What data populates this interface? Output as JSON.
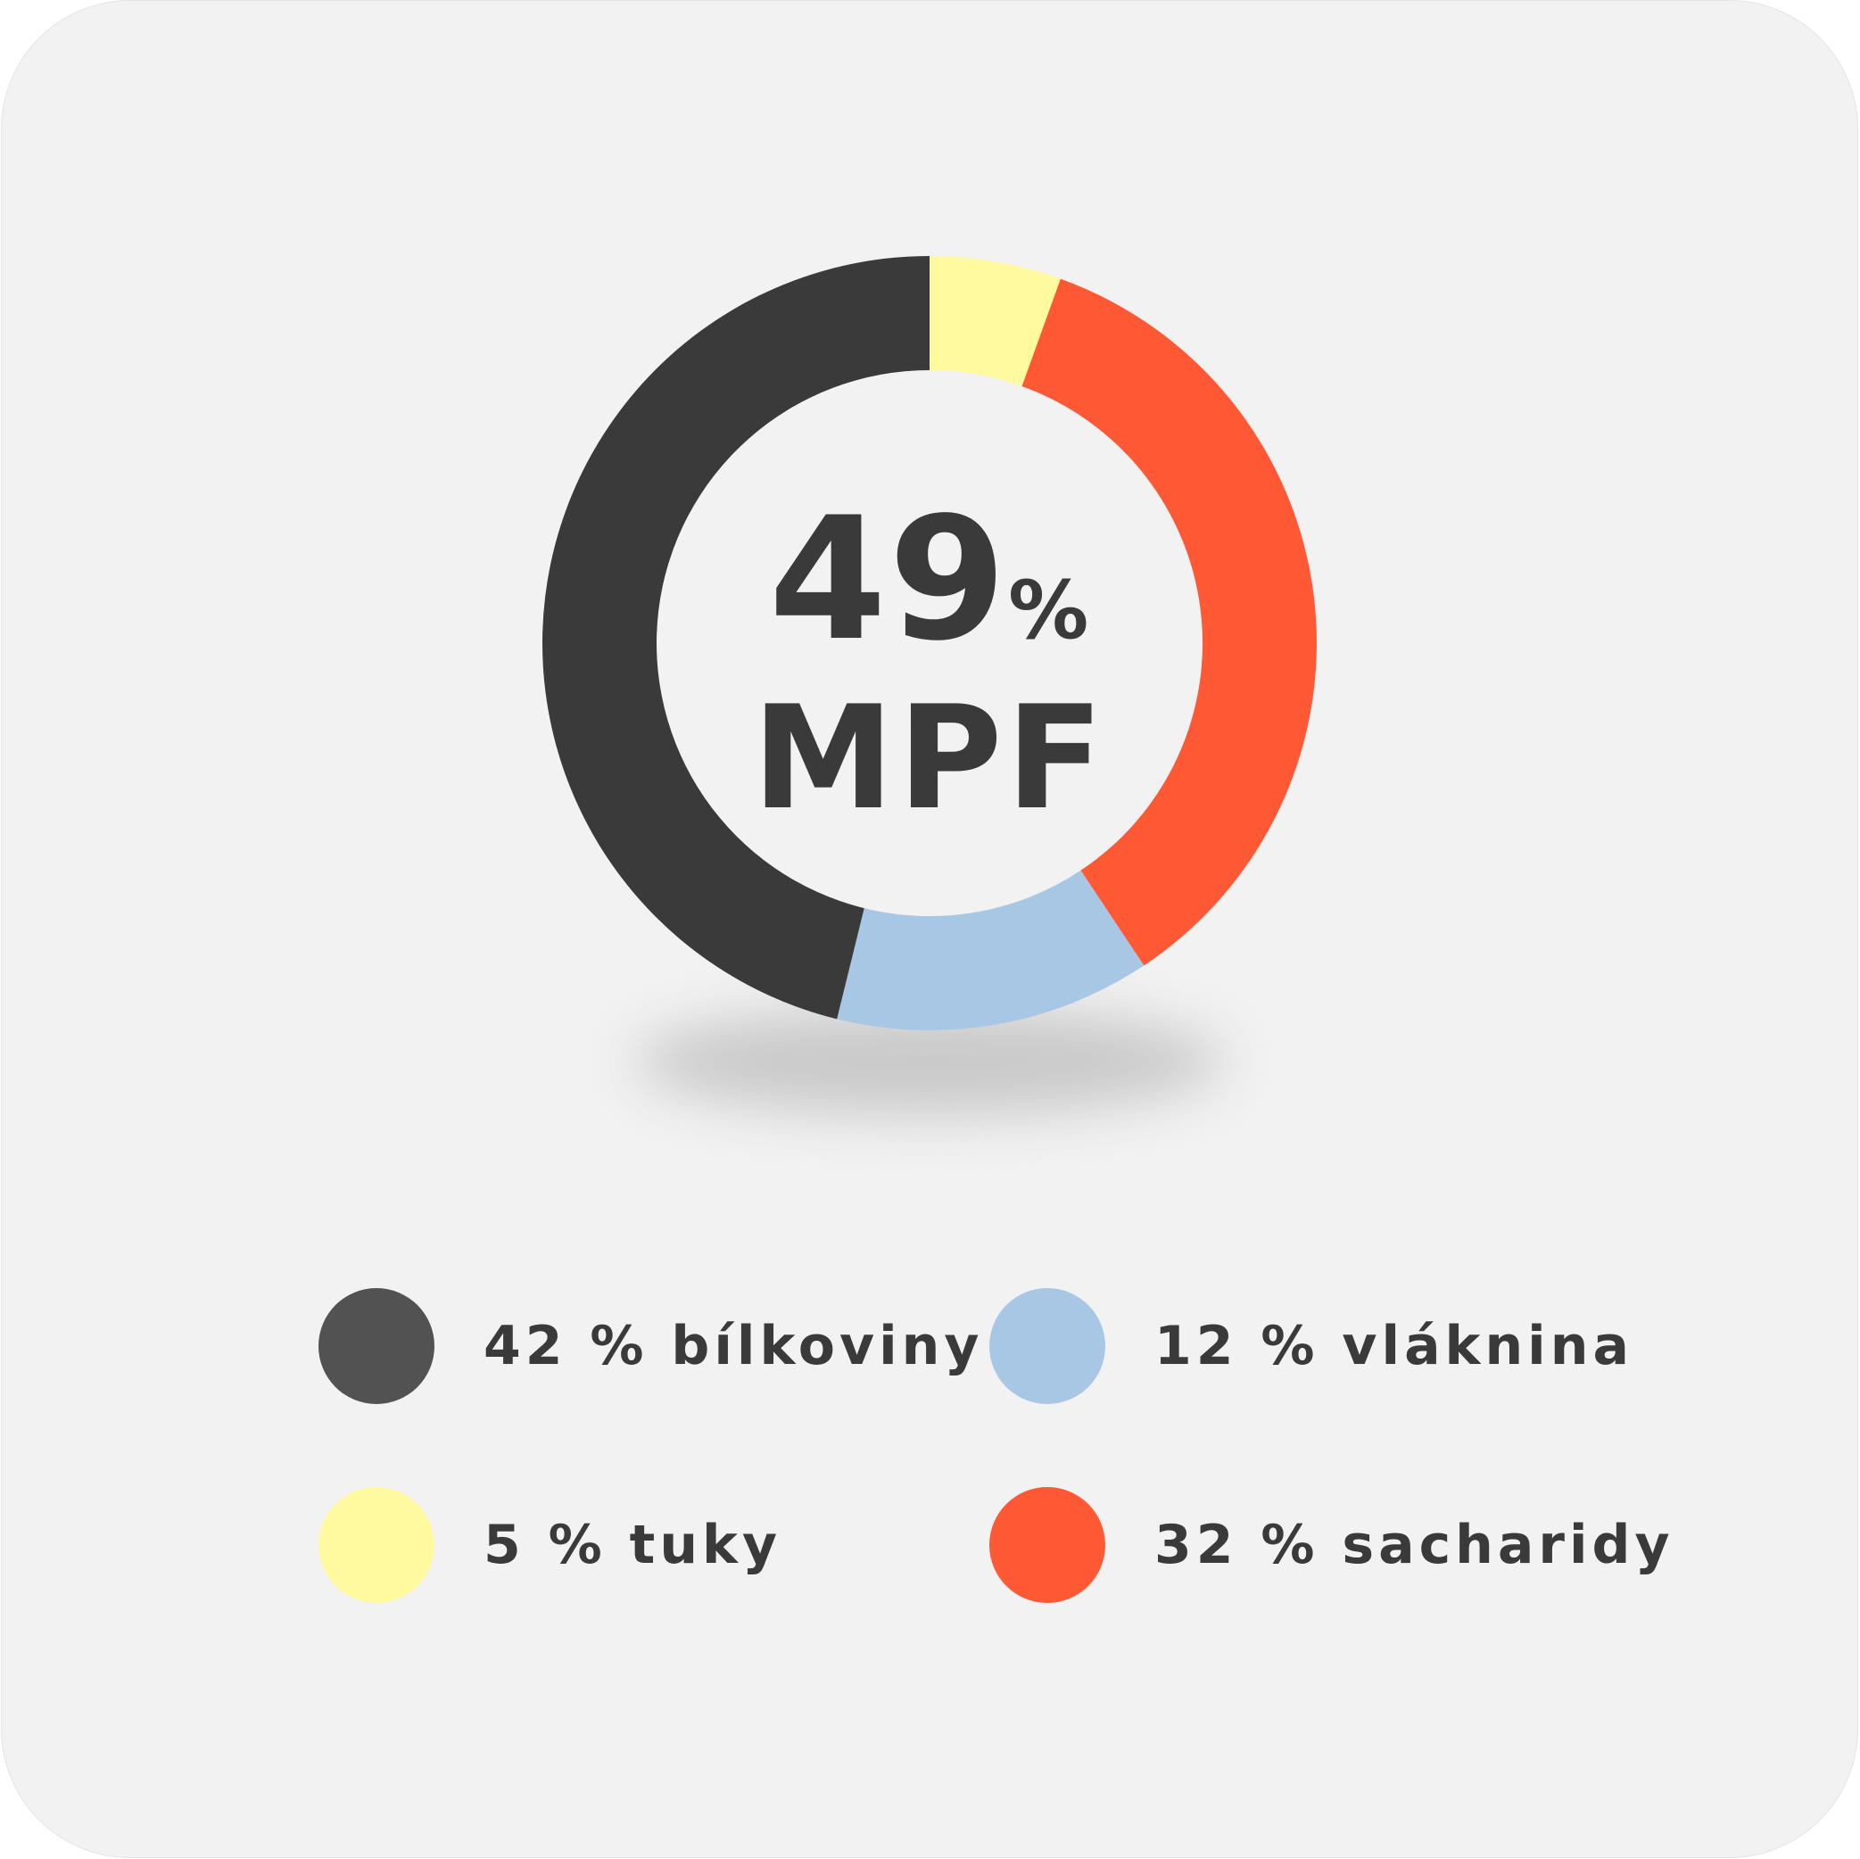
{
  "center": {
    "value": "49",
    "percent_sign": "%",
    "unit": "MPF"
  },
  "chart_data": {
    "type": "pie",
    "variant": "donut",
    "start": "top",
    "direction": "clockwise",
    "slices": [
      {
        "label": "5 % tuky",
        "value": 5,
        "color": "#fff9a0"
      },
      {
        "label": "32 % sacharidy",
        "value": 32,
        "color": "#ff5835"
      },
      {
        "label": "12 % vláknina",
        "value": 12,
        "color": "#a8c7e5"
      },
      {
        "label": "42 % bílkoviny",
        "value": 42,
        "color": "#3a3a3a"
      }
    ],
    "legend": [
      {
        "label": "42 % bílkoviny",
        "color": "#525252"
      },
      {
        "label": "12 % vláknina",
        "color": "#a8c7e5"
      },
      {
        "label": "5 % tuky",
        "color": "#fff9a0"
      },
      {
        "label": "32 % sacharidy",
        "color": "#ff5835"
      }
    ]
  }
}
